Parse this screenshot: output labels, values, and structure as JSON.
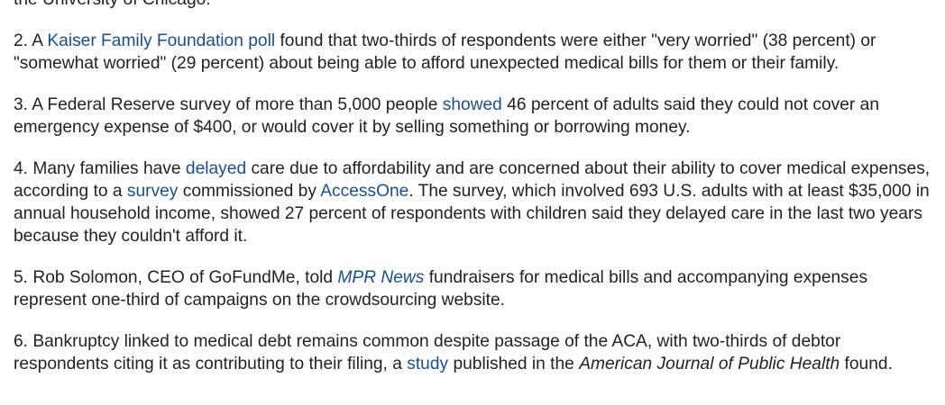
{
  "article": {
    "p1": {
      "text_tail": "the University of Chicago."
    },
    "p2": {
      "t1": "2. A ",
      "link_kff": "Kaiser Family Foundation poll",
      "t2": " found that two-thirds of respondents were either \"very worried\" (38 percent) or \"somewhat worried\" (29 percent) about being able to afford unexpected medical bills for them or their family."
    },
    "p3": {
      "t1": "3. A Federal Reserve survey of more than 5,000 people ",
      "link_showed": "showed",
      "t2": " 46 percent of adults said they could not cover an emergency expense of $400, or would cover it by selling something or borrowing money."
    },
    "p4": {
      "t1": "4. Many families have ",
      "link_delayed": "delayed",
      "t2": " care due to affordability and are concerned about their ability to cover medical expenses, according to a ",
      "link_survey": "survey",
      "t3": " commissioned by ",
      "link_accessone": "AccessOne",
      "t4": ". The survey, which involved 693 U.S. adults with at least $35,000 in annual household income, showed 27 percent of respondents with children said they delayed care in the last two years because they couldn't afford it."
    },
    "p5": {
      "t1": "5. Rob Solomon, CEO of GoFundMe, told ",
      "link_mpr": "MPR News",
      "t2": " fundraisers for medical bills and accompanying expenses represent one-third of campaigns on the crowdsourcing website."
    },
    "p6": {
      "t1": "6. Bankruptcy linked to medical debt remains common despite passage of the ACA, with two-thirds of debtor respondents citing it as contributing to their filing, a ",
      "link_study": "study",
      "t2": " published in the ",
      "journal": "American Journal of Public Health",
      "t3": " found."
    }
  },
  "colors": {
    "text": "#222222",
    "link": "#1a4f8f",
    "background": "#ffffff"
  }
}
